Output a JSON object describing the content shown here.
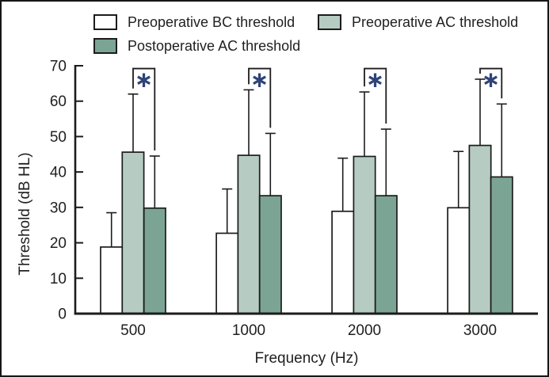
{
  "window": {
    "background": "#ffffff",
    "border_color": "#161616",
    "text_color": "#1f1f1f"
  },
  "legend": {
    "position": "top",
    "items": [
      {
        "key": "preop_bc",
        "label": "Preoperative BC threshold",
        "color": "#ffffff"
      },
      {
        "key": "preop_ac",
        "label": "Preoperative AC threshold",
        "color": "#b6ccc3"
      },
      {
        "key": "postop_ac",
        "label": "Postoperative AC threshold",
        "color": "#7ba494"
      }
    ]
  },
  "chart_data": {
    "type": "bar",
    "title": "",
    "xlabel": "Frequency (Hz)",
    "ylabel": "Threshold (dB HL)",
    "categories": [
      "500",
      "1000",
      "2000",
      "3000"
    ],
    "ylim": [
      0,
      70
    ],
    "yticks": [
      0,
      10,
      20,
      30,
      40,
      50,
      60,
      70
    ],
    "grid": false,
    "error_bars": "upper_only",
    "bar_stroke_color": "#1c1c1c",
    "series": [
      {
        "name": "Preoperative BC threshold",
        "color": "#ffffff",
        "values": [
          18.8,
          22.7,
          28.9,
          29.9
        ],
        "error_top": [
          28.5,
          35.2,
          43.9,
          45.8
        ]
      },
      {
        "name": "Preoperative AC threshold",
        "color": "#b6ccc3",
        "values": [
          45.6,
          44.7,
          44.4,
          47.5
        ],
        "error_top": [
          62.0,
          63.2,
          62.6,
          66.2
        ]
      },
      {
        "name": "Postoperative AC threshold",
        "color": "#7ba494",
        "values": [
          29.8,
          33.3,
          33.3,
          38.6
        ],
        "error_top": [
          44.5,
          50.9,
          52.1,
          59.2
        ]
      }
    ],
    "significance": {
      "label": "∗",
      "color": "#2e4378",
      "bracket_top_db": 69.2,
      "between_series": [
        1,
        2
      ],
      "applies_to_categories": [
        "500",
        "1000",
        "2000",
        "3000"
      ],
      "meaning": "preoperative AC vs postoperative AC"
    }
  }
}
